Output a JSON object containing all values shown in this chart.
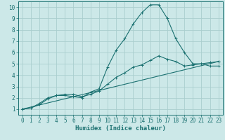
{
  "xlabel": "Humidex (Indice chaleur)",
  "background_color": "#cce8e8",
  "grid_color": "#aacece",
  "line_color": "#1a7070",
  "xlim": [
    -0.5,
    23.5
  ],
  "ylim": [
    0.5,
    10.5
  ],
  "xticks": [
    0,
    1,
    2,
    3,
    4,
    5,
    6,
    7,
    8,
    9,
    10,
    11,
    12,
    13,
    14,
    15,
    16,
    17,
    18,
    19,
    20,
    21,
    22,
    23
  ],
  "yticks": [
    1,
    2,
    3,
    4,
    5,
    6,
    7,
    8,
    9,
    10
  ],
  "series1_x": [
    0,
    1,
    2,
    3,
    4,
    5,
    6,
    7,
    8,
    9,
    10,
    11,
    12,
    13,
    14,
    15,
    16,
    17,
    18,
    19,
    20,
    21,
    22,
    23
  ],
  "series1_y": [
    1.0,
    1.1,
    1.5,
    2.0,
    2.2,
    2.2,
    2.1,
    2.0,
    2.5,
    2.8,
    4.7,
    6.2,
    7.2,
    8.5,
    9.5,
    10.2,
    10.2,
    9.0,
    7.2,
    6.0,
    5.0,
    5.0,
    4.8,
    4.8
  ],
  "series2_x": [
    0,
    1,
    2,
    3,
    4,
    5,
    6,
    7,
    8,
    9,
    10,
    11,
    12,
    13,
    14,
    15,
    16,
    17,
    18,
    19,
    20,
    21,
    22,
    23
  ],
  "series2_y": [
    1.0,
    1.1,
    1.4,
    1.9,
    2.2,
    2.3,
    2.3,
    2.1,
    2.3,
    2.6,
    3.2,
    3.8,
    4.2,
    4.7,
    4.9,
    5.3,
    5.7,
    5.4,
    5.2,
    4.8,
    4.9,
    5.0,
    5.1,
    5.2
  ],
  "series3_x": [
    0,
    23
  ],
  "series3_y": [
    1.0,
    5.2
  ]
}
